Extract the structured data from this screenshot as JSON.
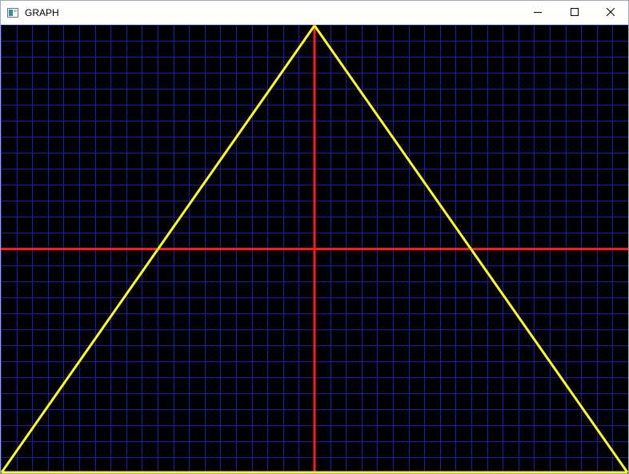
{
  "window": {
    "title": "GRAPH",
    "icon": "app-window-icon",
    "controls": [
      {
        "name": "minimize",
        "icon": "minimize-icon"
      },
      {
        "name": "maximize",
        "icon": "maximize-icon"
      },
      {
        "name": "close",
        "icon": "close-icon"
      }
    ]
  },
  "graph": {
    "background_color": "#000000",
    "grid_color": "#1a1ab4",
    "axis_color": "#ff1a1a",
    "curve_color": "#ffff1a",
    "grid": true,
    "x_divisions": 40,
    "y_divisions": 28,
    "curve": {
      "type": "line",
      "description_points": [
        {
          "x": -1,
          "y": -1
        },
        {
          "x": 0,
          "y": 1
        },
        {
          "x": 1,
          "y": -1
        },
        {
          "x": -1,
          "y": -1
        }
      ]
    },
    "xlim": [
      -1,
      1
    ],
    "ylim": [
      -1,
      1
    ]
  }
}
